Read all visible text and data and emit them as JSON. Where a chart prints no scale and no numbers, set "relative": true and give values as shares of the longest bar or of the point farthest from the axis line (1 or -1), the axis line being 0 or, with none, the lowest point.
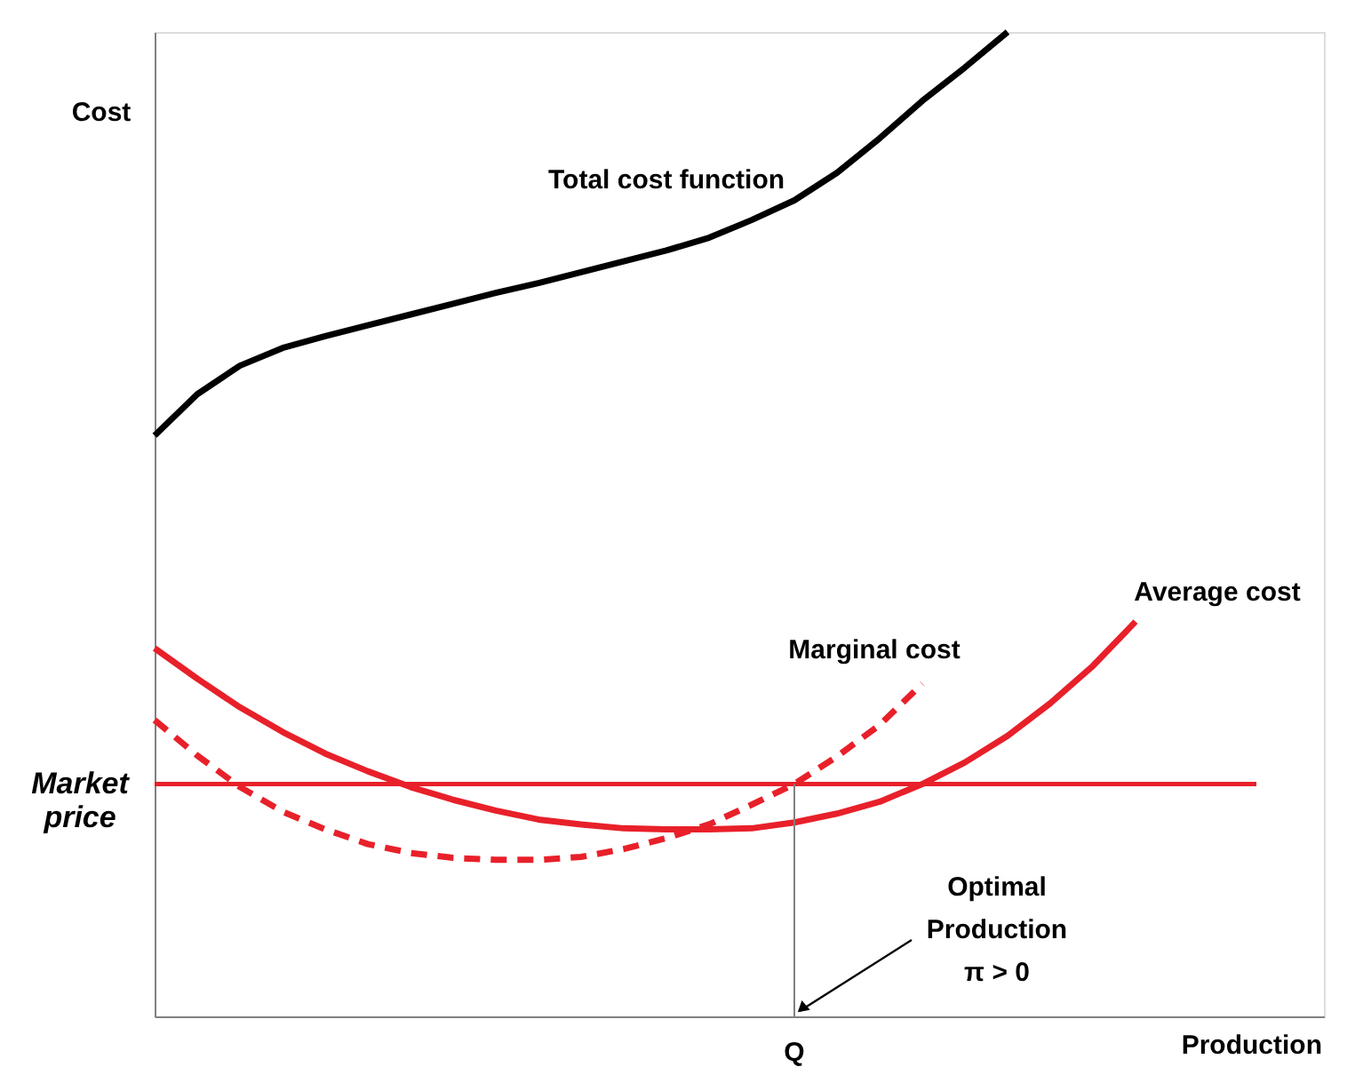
{
  "chart_data": {
    "type": "line",
    "relative": true,
    "xlabel": "Production",
    "ylabel": "Cost",
    "marker": "none",
    "categories": [
      null,
      null,
      null,
      null,
      null,
      null,
      null,
      null,
      null,
      null,
      null,
      null,
      null,
      null,
      null,
      null,
      null,
      null,
      null,
      null,
      null,
      null,
      null,
      null,
      null,
      null,
      null
    ],
    "series": [
      {
        "name": "Total cost function",
        "color": "#000000",
        "line_style": "solid",
        "values": [
          0.59,
          0.632,
          0.661,
          0.679,
          0.691,
          0.702,
          0.713,
          0.724,
          0.735,
          0.745,
          0.756,
          0.767,
          0.778,
          0.791,
          0.809,
          0.829,
          0.857,
          0.892,
          0.93,
          0.964,
          1.0,
          null,
          null,
          null,
          null,
          null,
          null
        ]
      },
      {
        "name": "Average cost",
        "color": "#e8202a",
        "line_style": "solid",
        "values": [
          0.374,
          0.343,
          0.314,
          0.289,
          0.267,
          0.249,
          0.233,
          0.22,
          0.209,
          0.2,
          0.195,
          0.191,
          0.19,
          0.19,
          0.191,
          0.197,
          0.206,
          0.218,
          0.236,
          0.258,
          0.285,
          0.318,
          0.356,
          0.401,
          null,
          null,
          null
        ]
      },
      {
        "name": "Marginal cost",
        "color": "#e8202a",
        "line_style": "dashed",
        "values": [
          0.301,
          0.265,
          0.233,
          0.208,
          0.19,
          0.175,
          0.166,
          0.161,
          0.159,
          0.159,
          0.162,
          0.17,
          0.181,
          0.195,
          0.215,
          0.236,
          0.264,
          0.296,
          0.338,
          null,
          null,
          null,
          null,
          null,
          null,
          null,
          null
        ]
      }
    ],
    "ref_lines": [
      {
        "axis": "y",
        "value": 0.236,
        "label": "Market price",
        "color": "#e8202a"
      }
    ],
    "annotations": [
      "Q",
      "Optimal\nProduction\nπ > 0"
    ],
    "grid": false
  }
}
